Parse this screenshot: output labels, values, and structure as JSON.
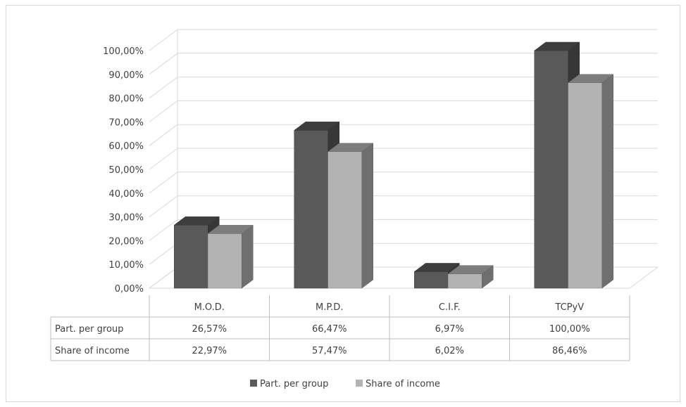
{
  "chart_data": {
    "type": "bar",
    "title": "",
    "xlabel": "",
    "ylabel": "",
    "categories": [
      "M.O.D.",
      "M.P.D.",
      "C.I.F.",
      "TCPyV"
    ],
    "series": [
      {
        "name": "Part. per group",
        "values": [
          26.57,
          66.47,
          6.97,
          100.0
        ],
        "labels": [
          "26,57%",
          "66,47%",
          "6,97%",
          "100,00%"
        ],
        "color": "#595959"
      },
      {
        "name": "Share of income",
        "values": [
          22.97,
          57.47,
          6.02,
          86.46
        ],
        "labels": [
          "22,97%",
          "57,47%",
          "6,02%",
          "86,46%"
        ],
        "color": "#b3b3b3"
      }
    ],
    "ylim": [
      0,
      100
    ],
    "y_ticks": [
      "0,00%",
      "10,00%",
      "20,00%",
      "30,00%",
      "40,00%",
      "50,00%",
      "60,00%",
      "70,00%",
      "80,00%",
      "90,00%",
      "100,00%"
    ],
    "grid": true,
    "legend": "bottom",
    "data_table": true,
    "style": "3d-clustered-column"
  }
}
